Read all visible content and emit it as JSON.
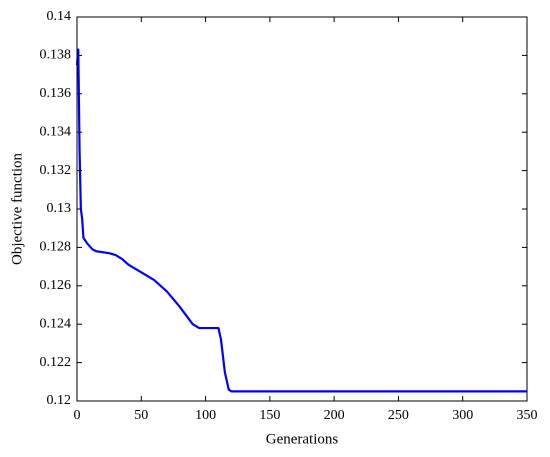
{
  "chart_data": {
    "type": "line",
    "xlabel": "Generations",
    "ylabel": "Objective function",
    "x": [
      0,
      1,
      2,
      3,
      4,
      5,
      6,
      8,
      12,
      15,
      25,
      30,
      35,
      40,
      50,
      60,
      70,
      80,
      90,
      95,
      110,
      112,
      115,
      118,
      120,
      200,
      350
    ],
    "series": [
      {
        "color": "#0000ff",
        "values": [
          0.1375,
          0.1383,
          0.133,
          0.13,
          0.1295,
          0.1285,
          0.1284,
          0.1282,
          0.1279,
          0.1278,
          0.1277,
          0.1276,
          0.1274,
          0.1271,
          0.1267,
          0.1263,
          0.1257,
          0.1249,
          0.124,
          0.1238,
          0.1238,
          0.1232,
          0.1215,
          0.1206,
          0.1205,
          0.1205,
          0.1205
        ]
      }
    ],
    "xlim": [
      0,
      350
    ],
    "xticks": [
      0,
      50,
      100,
      150,
      200,
      250,
      300,
      350
    ],
    "ylim": [
      0.12,
      0.14
    ],
    "yticks": [
      0.12,
      0.122,
      0.124,
      0.126,
      0.128,
      0.13,
      0.132,
      0.134,
      0.136,
      0.138,
      0.14
    ],
    "grid": false
  }
}
